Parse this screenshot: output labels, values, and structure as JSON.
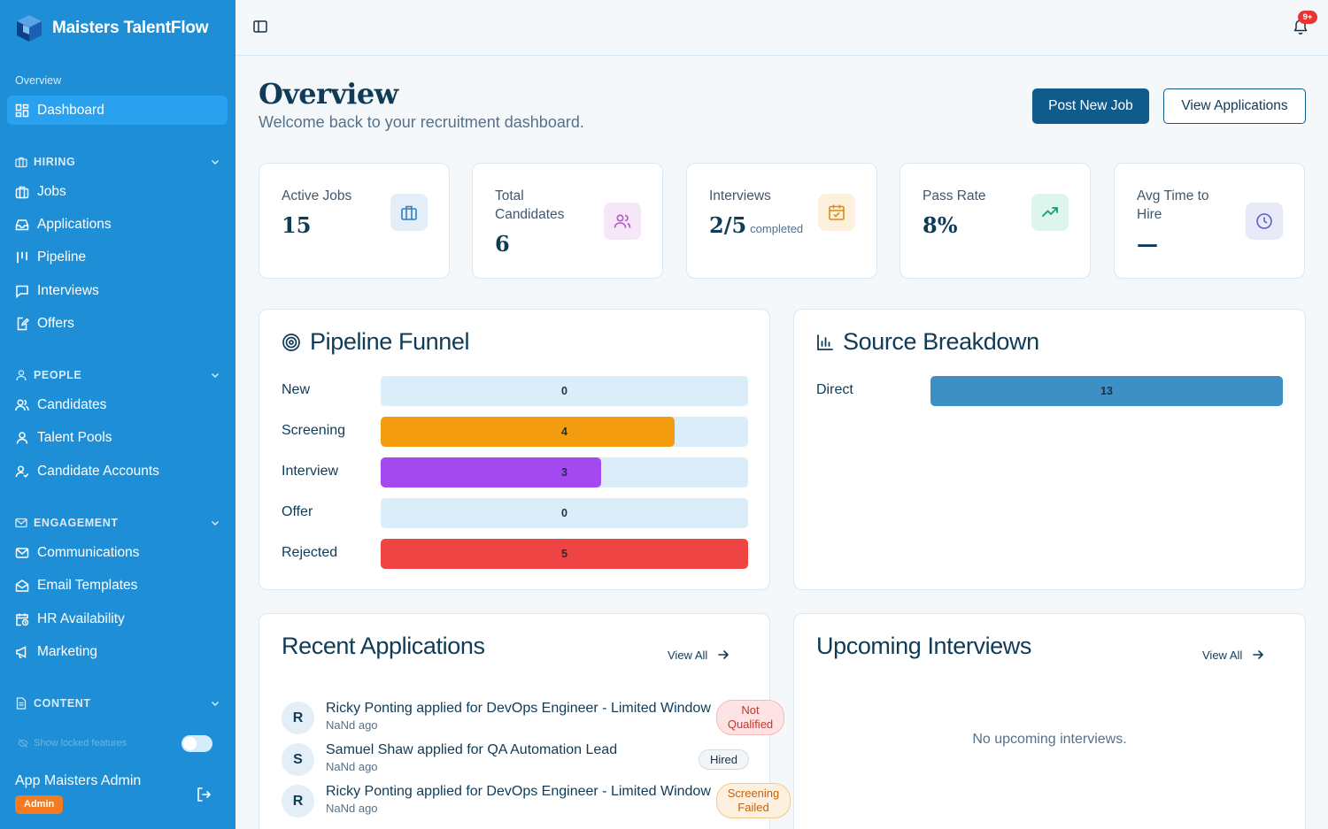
{
  "app": {
    "name": "Maisters TalentFlow"
  },
  "sidebar": {
    "overview_label": "Overview",
    "dashboard": "Dashboard",
    "hiring": {
      "title": "HIRING",
      "items": [
        "Jobs",
        "Applications",
        "Pipeline",
        "Interviews",
        "Offers"
      ]
    },
    "people": {
      "title": "PEOPLE",
      "items": [
        "Candidates",
        "Talent Pools",
        "Candidate Accounts"
      ]
    },
    "engagement": {
      "title": "ENGAGEMENT",
      "items": [
        "Communications",
        "Email Templates",
        "HR Availability",
        "Marketing"
      ]
    },
    "content": {
      "title": "CONTENT"
    },
    "show_locked": "Show locked features",
    "user": {
      "name": "App Maisters Admin",
      "role": "Admin"
    }
  },
  "topbar": {
    "notifications": "9+"
  },
  "header": {
    "title": "Overview",
    "subtitle": "Welcome back to your recruitment dashboard.",
    "post_job": "Post New Job",
    "view_applications": "View Applications"
  },
  "stats": [
    {
      "label": "Active Jobs",
      "value": "15",
      "suffix": "",
      "icon": "briefcase-icon",
      "color": "#2f7fc1"
    },
    {
      "label": "Total Candidates",
      "value": "6",
      "suffix": "",
      "icon": "users-icon",
      "color": "#b455c9"
    },
    {
      "label": "Interviews",
      "value": "2/5",
      "suffix": "completed",
      "icon": "calendar-check-icon",
      "color": "#e08a12"
    },
    {
      "label": "Pass Rate",
      "value": "8%",
      "suffix": "",
      "icon": "trending-up-icon",
      "color": "#12a06b"
    },
    {
      "label": "Avg Time to Hire",
      "value": "—",
      "suffix": "",
      "icon": "clock-icon",
      "color": "#5a5ec9"
    }
  ],
  "pipeline": {
    "title": "Pipeline Funnel",
    "max": 5,
    "stages": [
      {
        "label": "New",
        "value": 0,
        "color": "#f3a30f"
      },
      {
        "label": "Screening",
        "value": 4,
        "color": "#f39c0f"
      },
      {
        "label": "Interview",
        "value": 3,
        "color": "#a448f0"
      },
      {
        "label": "Offer",
        "value": 0,
        "color": "#22b573"
      },
      {
        "label": "Rejected",
        "value": 5,
        "color": "#ef4444"
      }
    ]
  },
  "sources": {
    "title": "Source Breakdown",
    "max": 13,
    "items": [
      {
        "label": "Direct",
        "value": 13,
        "color": "#3d8fc4"
      }
    ]
  },
  "recent": {
    "title": "Recent Applications",
    "view_all": "View All",
    "items": [
      {
        "initial": "R",
        "text": "Ricky Ponting applied for DevOps Engineer - Limited Window",
        "time": "NaNd ago",
        "status": "Not Qualified",
        "bg": "#fde3e3",
        "fg": "#c0392b",
        "border": "#f6b8b8"
      },
      {
        "initial": "S",
        "text": "Samuel Shaw applied for QA Automation Lead",
        "time": "NaNd ago",
        "status": "Hired",
        "bg": "#f3f6f8",
        "fg": "#1d3042",
        "border": "#d3dce3"
      },
      {
        "initial": "R",
        "text": "Ricky Ponting applied for DevOps Engineer - Limited Window",
        "time": "NaNd ago",
        "status": "Screening Failed",
        "bg": "#fdf0df",
        "fg": "#c2620e",
        "border": "#f5c98b"
      }
    ]
  },
  "upcoming": {
    "title": "Upcoming Interviews",
    "view_all": "View All",
    "empty": "No upcoming interviews."
  }
}
